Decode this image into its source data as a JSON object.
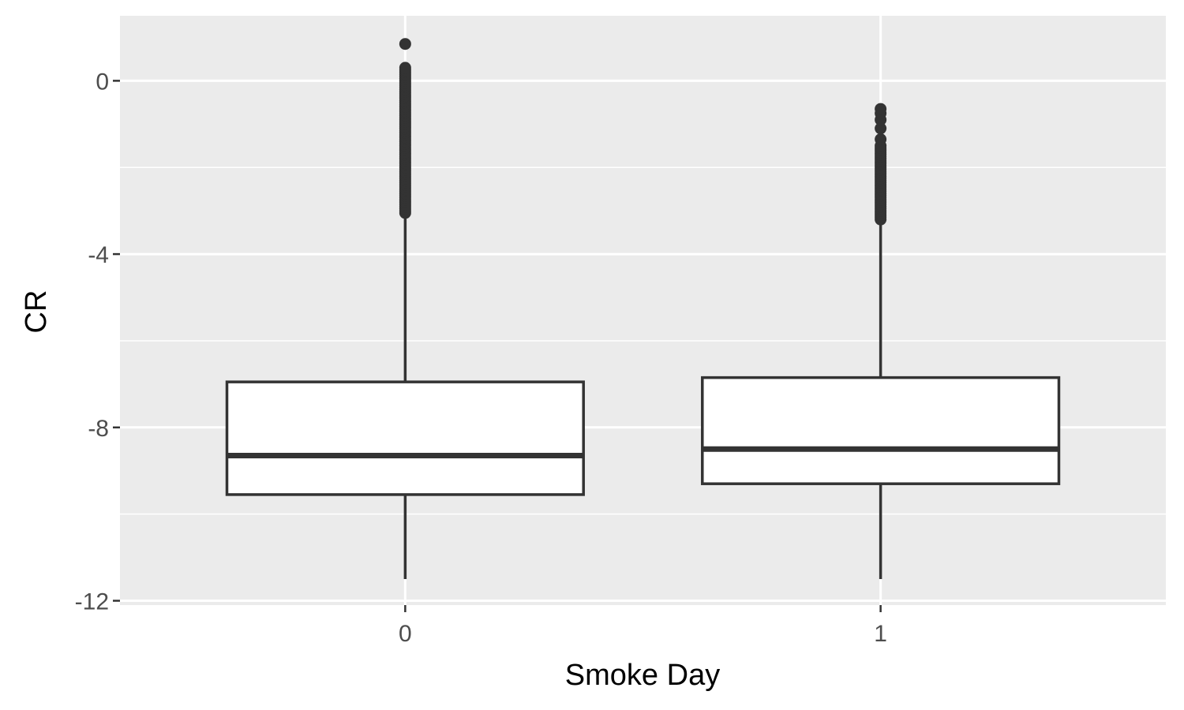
{
  "chart_data": {
    "type": "box",
    "xlabel": "Smoke Day",
    "ylabel": "CR",
    "ylim": [
      -12.1,
      1.5
    ],
    "yticks": [
      0,
      -4,
      -8,
      -12
    ],
    "yminor": [
      -2,
      -6,
      -10
    ],
    "grid": true,
    "categories": [
      "0",
      "1"
    ],
    "boxes": [
      {
        "category": "0",
        "whisker_low": -11.5,
        "q1": -9.55,
        "median": -8.65,
        "q3": -6.95,
        "whisker_high": -3.05,
        "outlier_range": [
          -3.05,
          0.3
        ],
        "outliers_extra": [
          0.85
        ]
      },
      {
        "category": "1",
        "whisker_low": -11.5,
        "q1": -9.3,
        "median": -8.5,
        "q3": -6.85,
        "whisker_high": -3.2,
        "outlier_range": [
          -3.2,
          -1.5
        ],
        "outliers_extra": [
          -1.35,
          -1.1,
          -0.9,
          -0.75,
          -0.65
        ]
      }
    ],
    "colors": {
      "panel": "#ebebeb",
      "grid": "#ffffff",
      "box_fill": "#ffffff",
      "box_line": "#333333"
    }
  }
}
